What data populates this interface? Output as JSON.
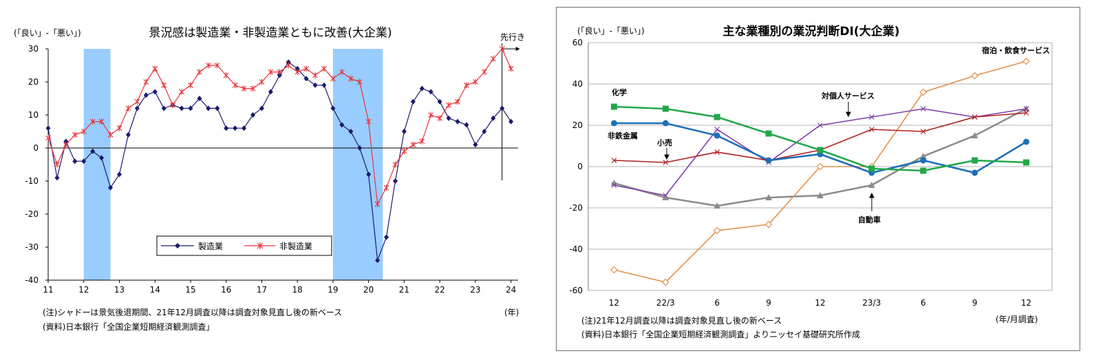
{
  "chart_data": [
    {
      "type": "line",
      "title": "景況感は製造業・非製造業ともに改善(大企業)",
      "ylabel": "(「良い」-「悪い」)",
      "xlabel": "(年)",
      "ylim": [
        -40,
        30
      ],
      "yticks": [
        "30",
        "20",
        "10",
        "0",
        "-10",
        "-20",
        "-30",
        "-40"
      ],
      "xticks": [
        "11",
        "12",
        "13",
        "14",
        "15",
        "16",
        "17",
        "18",
        "19",
        "20",
        "21",
        "22",
        "23",
        "24"
      ],
      "forecast_label": "先行き",
      "recession_shading": [
        [
          12.0,
          12.75
        ],
        [
          19.0,
          20.4
        ]
      ],
      "legend_position": "center-bottom",
      "note": "(注)シャドーは景気後退期間、21年12月調査以降は調査対象見直し後の新ベース",
      "source": "(資料)日本銀行「全国企業短期経済観測調査」",
      "series": [
        {
          "name": "製造業",
          "color": "#1a1a6e",
          "marker": "diamond",
          "x": [
            11.0,
            11.25,
            11.5,
            11.75,
            12.0,
            12.25,
            12.5,
            12.75,
            13.0,
            13.25,
            13.5,
            13.75,
            14.0,
            14.25,
            14.5,
            14.75,
            15.0,
            15.25,
            15.5,
            15.75,
            16.0,
            16.25,
            16.5,
            16.75,
            17.0,
            17.25,
            17.5,
            17.75,
            18.0,
            18.25,
            18.5,
            18.75,
            19.0,
            19.25,
            19.5,
            19.75,
            20.0,
            20.25,
            20.5,
            20.75,
            21.0,
            21.25,
            21.5,
            21.75,
            22.0,
            22.25,
            22.5,
            22.75,
            23.0,
            23.25,
            23.5,
            23.75,
            24.0
          ],
          "values": [
            6,
            -9,
            2,
            -4,
            -4,
            -1,
            -3,
            -12,
            -8,
            4,
            12,
            16,
            17,
            12,
            13,
            12,
            12,
            15,
            12,
            12,
            6,
            6,
            6,
            10,
            12,
            17,
            22,
            26,
            24,
            21,
            19,
            19,
            12,
            7,
            5,
            0,
            -8,
            -34,
            -27,
            -10,
            5,
            14,
            18,
            17,
            14,
            9,
            8,
            7,
            1,
            5,
            9,
            12,
            8
          ]
        },
        {
          "name": "非製造業",
          "color": "#e8333a",
          "marker": "asterisk",
          "x": [
            11.0,
            11.25,
            11.5,
            11.75,
            12.0,
            12.25,
            12.5,
            12.75,
            13.0,
            13.25,
            13.5,
            13.75,
            14.0,
            14.25,
            14.5,
            14.75,
            15.0,
            15.25,
            15.5,
            15.75,
            16.0,
            16.25,
            16.5,
            16.75,
            17.0,
            17.25,
            17.5,
            17.75,
            18.0,
            18.25,
            18.5,
            18.75,
            19.0,
            19.25,
            19.5,
            19.75,
            20.0,
            20.25,
            20.5,
            20.75,
            21.0,
            21.25,
            21.5,
            21.75,
            22.0,
            22.25,
            22.5,
            22.75,
            23.0,
            23.25,
            23.5,
            23.75,
            24.0
          ],
          "values": [
            3,
            -5,
            1,
            4,
            5,
            8,
            8,
            4,
            6,
            12,
            14,
            20,
            24,
            19,
            13,
            17,
            19,
            23,
            25,
            25,
            22,
            19,
            18,
            18,
            20,
            23,
            23,
            25,
            23,
            24,
            22,
            24,
            21,
            23,
            21,
            20,
            8,
            -17,
            -12,
            -5,
            -1,
            1,
            2,
            10,
            9,
            13,
            14,
            19,
            20,
            23,
            27,
            30,
            24
          ]
        }
      ]
    },
    {
      "type": "line",
      "title": "主な業種別の業況判断DI(大企業)",
      "ylabel": "(「良い」-「悪い」)",
      "xlabel": "(年/月調査)",
      "ylim": [
        -60,
        60
      ],
      "yticks": [
        "60",
        "40",
        "20",
        "0",
        "-20",
        "-40",
        "-60"
      ],
      "categories": [
        "12",
        "22/3",
        "6",
        "9",
        "12",
        "23/3",
        "6",
        "9",
        "12"
      ],
      "grid": true,
      "note": "(注)21年12月調査以降は調査対象見直し後の新ベース",
      "source": "(資料)日本銀行「全国企業短期経済観測調査」よりニッセイ基礎研究所作成",
      "series": [
        {
          "name": "化学",
          "color": "#22a84a",
          "marker": "square",
          "values": [
            29,
            28,
            24,
            16,
            8,
            -1,
            -2,
            3,
            2
          ]
        },
        {
          "name": "非鉄金属",
          "color": "#1e6fb8",
          "marker": "circle",
          "values": [
            21,
            21,
            15,
            3,
            6,
            -3,
            3,
            -3,
            12
          ]
        },
        {
          "name": "小売",
          "color": "#b01e1e",
          "marker": "x",
          "values": [
            3,
            2,
            7,
            3,
            8,
            18,
            17,
            24,
            26
          ]
        },
        {
          "name": "対個人サービス",
          "color": "#7d3fa8",
          "marker": "x",
          "values": [
            -9,
            -14,
            18,
            2,
            20,
            24,
            28,
            24,
            28
          ]
        },
        {
          "name": "自動車",
          "color": "#8c8c8c",
          "marker": "triangle",
          "values": [
            -8,
            -15,
            -19,
            -15,
            -14,
            -9,
            5,
            15,
            28
          ]
        },
        {
          "name": "宿泊・飲食サービス",
          "color": "#e0904a",
          "marker": "open-diamond",
          "values": [
            -50,
            -56,
            -31,
            -28,
            0,
            0,
            36,
            44,
            51
          ]
        }
      ]
    }
  ]
}
